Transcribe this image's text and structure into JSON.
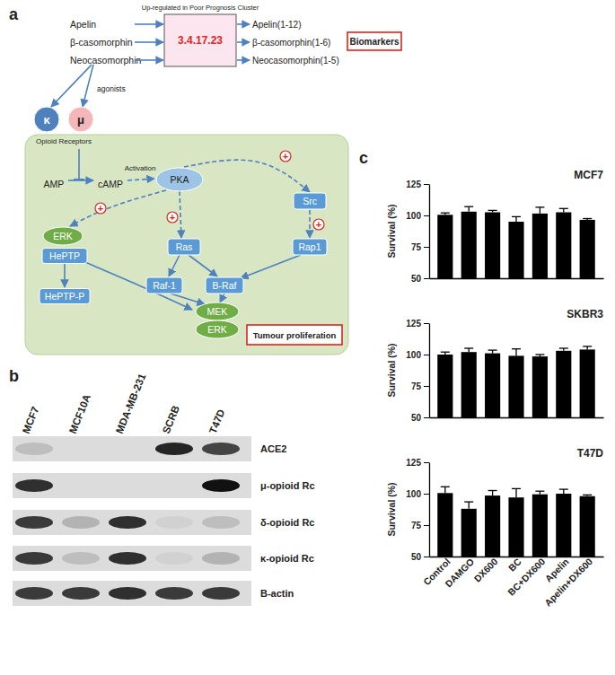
{
  "diagram": {
    "label": "a",
    "enzyme": "3.4.17.23",
    "enzyme_note": "Up-regulated in Poor Prognosis Cluster",
    "substrates": [
      "Apelin",
      "β-casomorphin",
      "Neocasomorphin"
    ],
    "products": [
      "Apelin(1-12)",
      "β-casomorphin(1-6)",
      "Neocasomorphin(1-5)"
    ],
    "biomarkers": "Biomarkers",
    "agonists": "agonists",
    "receptors": [
      "κ",
      "μ"
    ],
    "receptor_group": "Opioid Receptors",
    "activation": "Activation",
    "plus": "+",
    "nodes": {
      "amp": "AMP",
      "camp": "cAMP",
      "pka": "PKA",
      "src": "Src",
      "erk1": "ERK",
      "heptp": "HePTP",
      "heptpp": "HePTP-P",
      "ras": "Ras",
      "rap1": "Rap1",
      "raf1": "Raf-1",
      "braf": "B-Raf",
      "mek": "MEK",
      "erk2": "ERK"
    },
    "outcome": "Tumour proliferation"
  },
  "blot": {
    "label": "b",
    "lanes": [
      "MCF7",
      "MCF10A",
      "MDA-MB-231",
      "SCRB",
      "T47D"
    ],
    "rows": [
      {
        "name": "ACE2",
        "intensity": [
          0.15,
          0,
          0,
          0.9,
          0.75
        ]
      },
      {
        "name": "μ-opioid Rc",
        "intensity": [
          0.85,
          0,
          0,
          0,
          1
        ]
      },
      {
        "name": "δ-opioid Rc",
        "intensity": [
          0.8,
          0.2,
          0.85,
          0.05,
          0.15
        ]
      },
      {
        "name": "κ-opioid Rc",
        "intensity": [
          0.8,
          0.15,
          0.85,
          0.05,
          0.2
        ]
      },
      {
        "name": "B-actin",
        "intensity": [
          0.8,
          0.8,
          0.85,
          0.8,
          0.8
        ]
      }
    ]
  },
  "panel_c_label": "c",
  "chart_data": [
    {
      "type": "bar",
      "title": "MCF7",
      "y_label": "Survival (%)",
      "categories": [
        "Control",
        "DAMGO",
        "DX600",
        "BC",
        "BC+DX600",
        "Apelin",
        "Apelin+DX600"
      ],
      "values": [
        100.5,
        103,
        102.5,
        95,
        101.5,
        102.5,
        96.5
      ],
      "errors": [
        1.5,
        4,
        1.5,
        4,
        5,
        3,
        1
      ],
      "color": "#000000",
      "ylim": [
        50,
        125
      ],
      "yticks": [
        50,
        75,
        100,
        125
      ],
      "grid": false,
      "tick_labels": "y"
    },
    {
      "type": "bar",
      "title": "SKBR3",
      "y_label": "Survival (%)",
      "categories": [
        "Control",
        "DAMGO",
        "DX600",
        "BC",
        "BC+DX600",
        "Apelin",
        "Apelin+DX600"
      ],
      "values": [
        100,
        102,
        101,
        99,
        98.5,
        103,
        104
      ],
      "errors": [
        2,
        3,
        2.5,
        5.5,
        1.5,
        2,
        2.5
      ],
      "color": "#000000",
      "ylim": [
        50,
        125
      ],
      "yticks": [
        50,
        75,
        100,
        125
      ],
      "grid": false,
      "tick_labels": "y"
    },
    {
      "type": "bar",
      "title": "T47D",
      "y_label": "Survival (%)",
      "categories": [
        "Control",
        "DAMGO",
        "DX600",
        "BC",
        "BC+DX600",
        "Apelin",
        "Apelin+DX600"
      ],
      "values": [
        100.5,
        88,
        98.5,
        97,
        99.5,
        100,
        98
      ],
      "errors": [
        5,
        5.5,
        4,
        7,
        2.5,
        3.5,
        1
      ],
      "color": "#000000",
      "ylim": [
        50,
        125
      ],
      "yticks": [
        50,
        75,
        100,
        125
      ],
      "grid": false
    }
  ]
}
